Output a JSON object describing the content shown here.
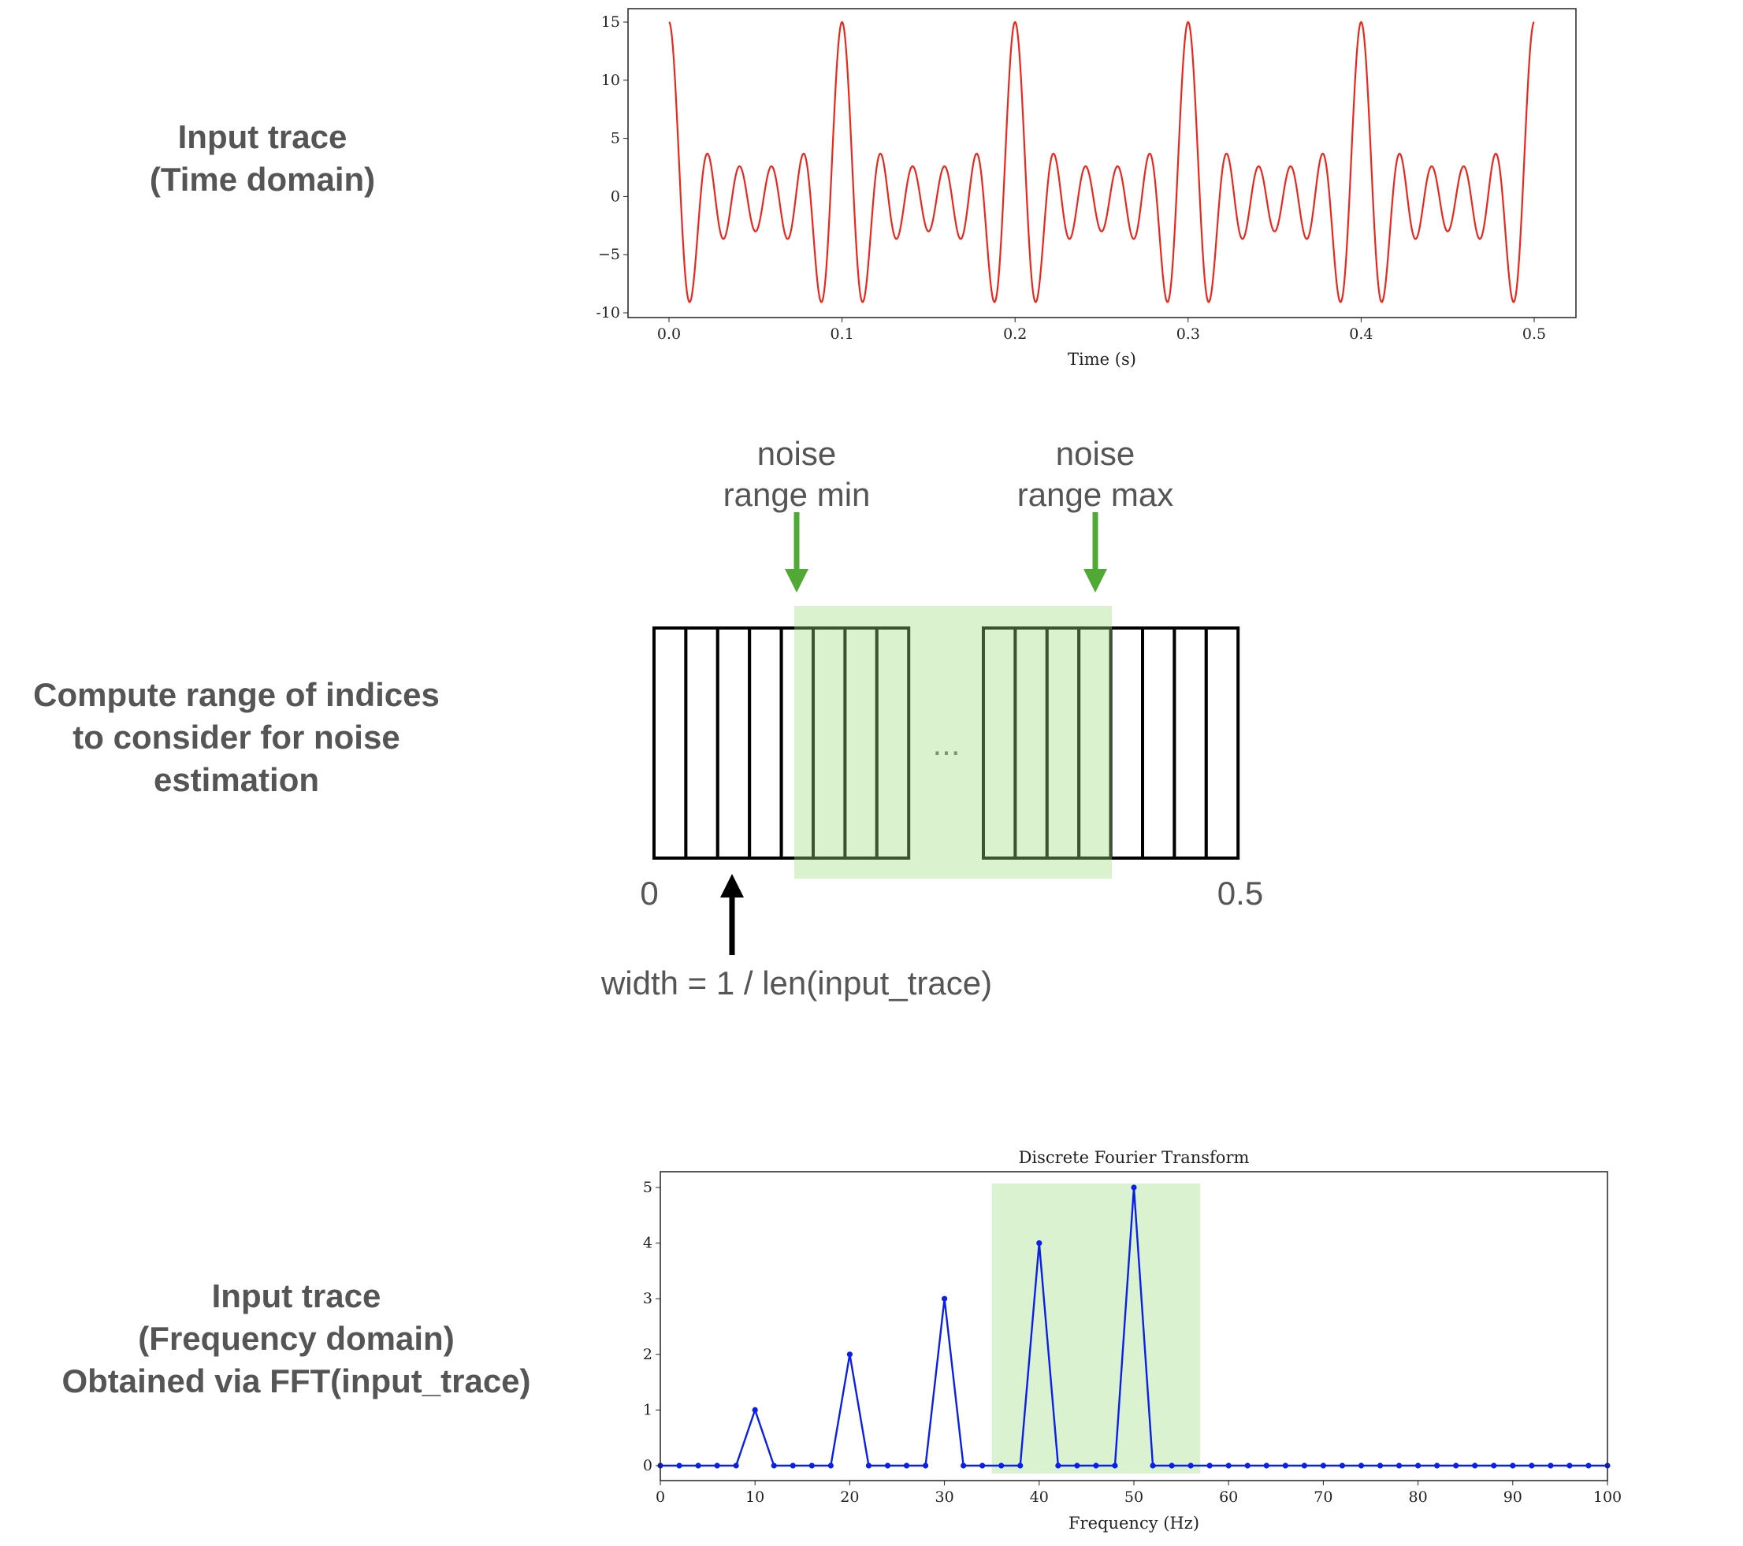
{
  "left_labels": {
    "time_domain": [
      "Input trace",
      "(Time domain)"
    ],
    "compute_range": [
      "Compute range of indices",
      "to consider for noise",
      "estimation"
    ],
    "freq_domain": [
      "Input trace",
      "(Frequency domain)",
      "Obtained via FFT(input_trace)"
    ]
  },
  "diagram": {
    "noise_min": [
      "noise",
      "range min"
    ],
    "noise_max": [
      "noise",
      "range max"
    ],
    "ellipsis": "...",
    "start_label": "0",
    "end_label": "0.5",
    "width_label": "width = 1 / len(input_trace)",
    "colors": {
      "highlight": "#daf2d0",
      "arrow_green": "#4fa934",
      "box": "#000000",
      "text": "#555555"
    }
  },
  "chart_data": [
    {
      "type": "line",
      "title": "",
      "xlabel": "Time (s)",
      "ylabel": "",
      "xlim": [
        0,
        0.5
      ],
      "ylim": [
        -10,
        15
      ],
      "x_ticks": [
        "0.0",
        "0.1",
        "0.2",
        "0.3",
        "0.4",
        "0.5"
      ],
      "y_ticks": [
        "15",
        "10",
        "5",
        "0",
        "−5",
        "-10"
      ],
      "color": "#e8281e",
      "signal_components": [
        {
          "freq_hz": 10,
          "amplitude": 1
        },
        {
          "freq_hz": 20,
          "amplitude": 2
        },
        {
          "freq_hz": 30,
          "amplitude": 3
        },
        {
          "freq_hz": 40,
          "amplitude": 4
        },
        {
          "freq_hz": 50,
          "amplitude": 5
        }
      ]
    },
    {
      "type": "line",
      "title": "Discrete Fourier Transform",
      "xlabel": "Frequency (Hz)",
      "ylabel": "",
      "xlim": [
        0,
        100
      ],
      "ylim": [
        -0.25,
        5.25
      ],
      "x_ticks": [
        "0",
        "10",
        "20",
        "30",
        "40",
        "50",
        "60",
        "70",
        "80",
        "90",
        "100"
      ],
      "y_ticks": [
        "5",
        "4",
        "3",
        "2",
        "1",
        "0"
      ],
      "color": "#0a1fe8",
      "marker": "dot",
      "highlight_span": [
        35,
        57
      ],
      "highlight_color": "#daf2d0",
      "x": [
        0,
        2,
        4,
        6,
        8,
        10,
        12,
        14,
        16,
        18,
        20,
        22,
        24,
        26,
        28,
        30,
        32,
        34,
        36,
        38,
        40,
        42,
        44,
        46,
        48,
        50,
        52,
        54,
        56,
        58,
        60,
        62,
        64,
        66,
        68,
        70,
        72,
        74,
        76,
        78,
        80,
        82,
        84,
        86,
        88,
        90,
        92,
        94,
        96,
        98,
        100
      ],
      "values": [
        0,
        0,
        0,
        0,
        0,
        1,
        0,
        0,
        0,
        0,
        2,
        0,
        0,
        0,
        0,
        3,
        0,
        0,
        0,
        0,
        4,
        0,
        0,
        0,
        0,
        5,
        0,
        0,
        0,
        0,
        0,
        0,
        0,
        0,
        0,
        0,
        0,
        0,
        0,
        0,
        0,
        0,
        0,
        0,
        0,
        0,
        0,
        0,
        0,
        0,
        0
      ]
    }
  ]
}
